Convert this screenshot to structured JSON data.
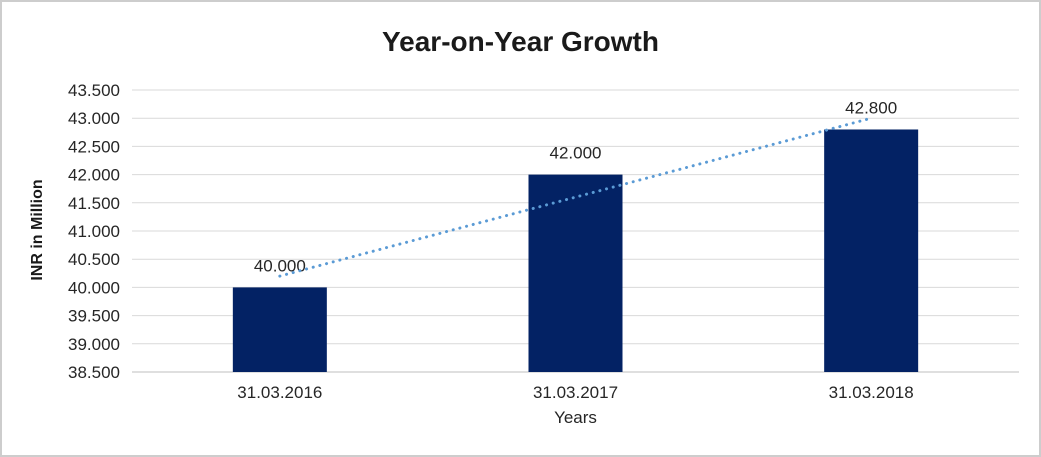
{
  "window": {
    "background": "#ffffff",
    "frame_border_color": "#cdcdcd"
  },
  "chart_data": {
    "type": "bar",
    "title": "Year-on-Year Growth",
    "categories": [
      "31.03.2016",
      "31.03.2017",
      "31.03.2018"
    ],
    "values": [
      40.0,
      42.0,
      42.8
    ],
    "value_labels": [
      "40.000",
      "42.000",
      "42.800"
    ],
    "xlabel": "Years",
    "ylabel": "INR in Million",
    "ylim": [
      38.5,
      43.5
    ],
    "ytick_step": 0.5,
    "ytick_labels": [
      "43.500",
      "43.000",
      "42.500",
      "42.000",
      "41.500",
      "41.000",
      "40.500",
      "40.000",
      "39.500",
      "39.000",
      "38.500"
    ],
    "grid": "horizontal",
    "legend": "none",
    "trendline": {
      "style": "dotted",
      "start_value": 40.2,
      "end_value": 43.0
    },
    "colors": {
      "bar_fill": "#032264",
      "trend_dots": "#5b9bd5",
      "gridline": "#d9d9d9",
      "axis_line": "#bfbfbf",
      "label_text": "#262626",
      "title_text": "#1a1a1a"
    }
  }
}
